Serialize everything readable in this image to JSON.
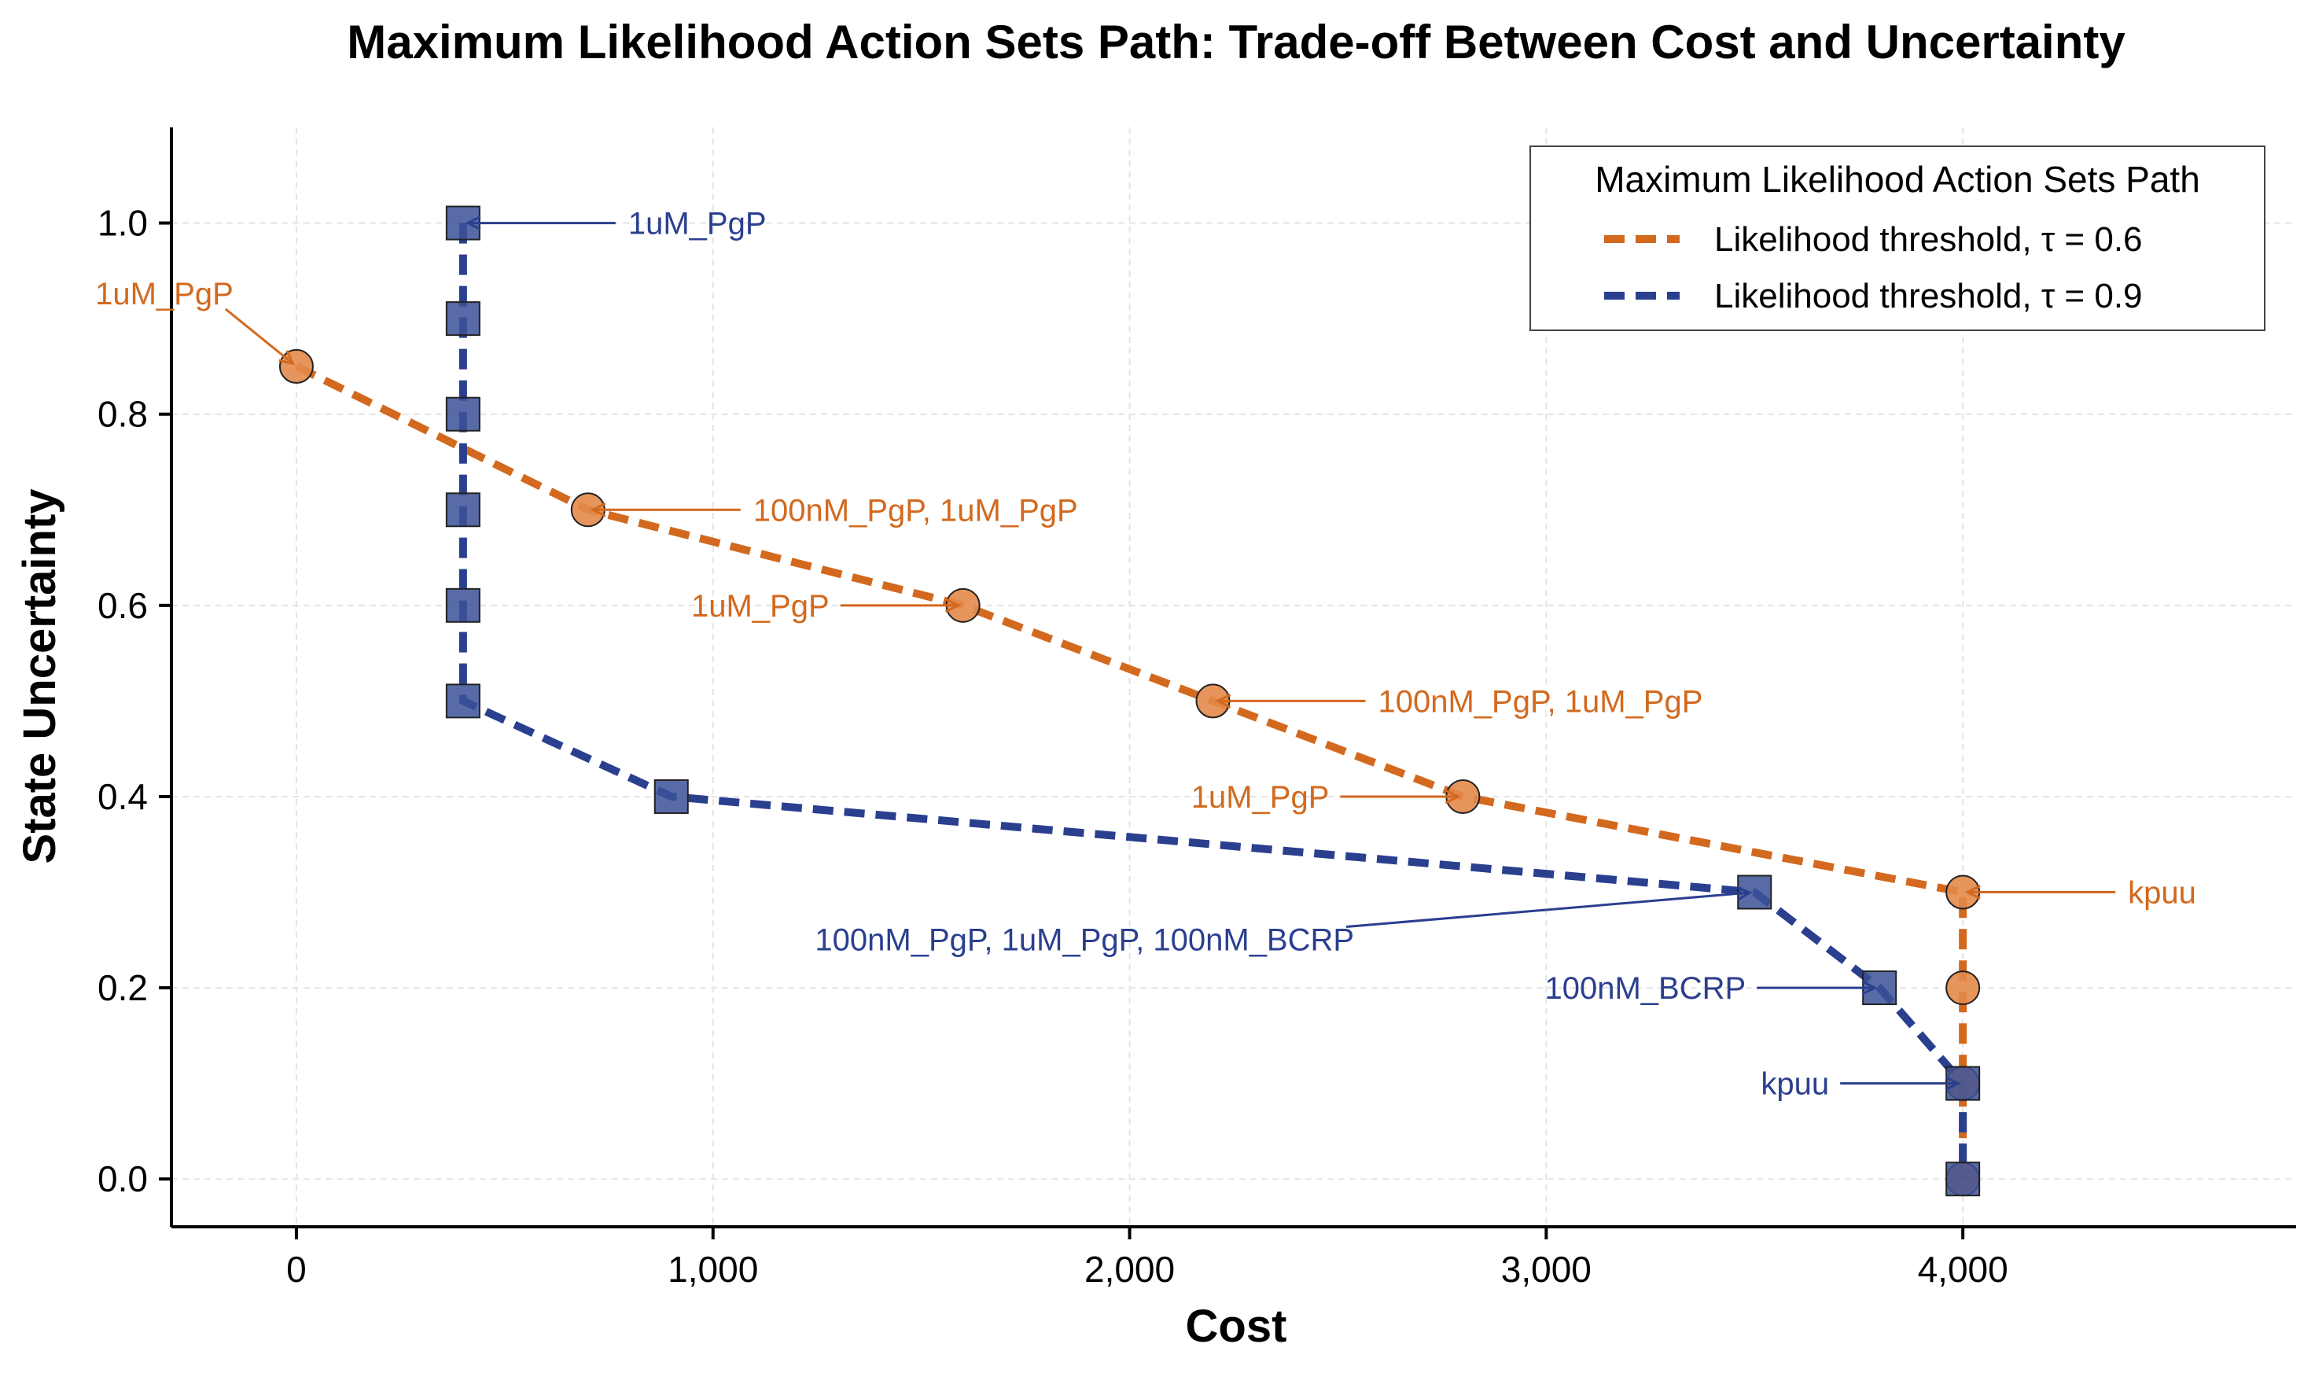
{
  "chart_data": {
    "type": "line",
    "title": "Maximum Likelihood Action Sets Path: Trade-off Between Cost and Uncertainty",
    "xlabel": "Cost",
    "ylabel": "State Uncertainty",
    "xlim": [
      -300,
      4800
    ],
    "ylim": [
      -0.05,
      1.1
    ],
    "xticks": [
      0,
      1000,
      2000,
      3000,
      4000
    ],
    "xtick_labels": [
      "0",
      "1,000",
      "2,000",
      "3,000",
      "4,000"
    ],
    "yticks": [
      0.0,
      0.2,
      0.4,
      0.6,
      0.8,
      1.0
    ],
    "ytick_labels": [
      "0.0",
      "0.2",
      "0.4",
      "0.6",
      "0.8",
      "1.0"
    ],
    "grid": true,
    "legend": {
      "title": "Maximum Likelihood Action Sets Path",
      "placement": "top-right"
    },
    "series": [
      {
        "name": "Likelihood threshold, τ = 0.6",
        "color": "#d2691e",
        "marker": "circle",
        "line_style": "dashed",
        "x": [
          0,
          700,
          1600,
          2200,
          2800,
          4000,
          4000,
          4000,
          4000
        ],
        "y": [
          0.85,
          0.7,
          0.6,
          0.5,
          0.4,
          0.3,
          0.2,
          0.1,
          0.0
        ],
        "annotations": [
          {
            "x": 0,
            "y": 0.85,
            "label": "1uM_PgP",
            "side": "above-left"
          },
          {
            "x": 700,
            "y": 0.7,
            "label": "100nM_PgP, 1uM_PgP",
            "side": "right"
          },
          {
            "x": 1600,
            "y": 0.6,
            "label": "1uM_PgP",
            "side": "left"
          },
          {
            "x": 2200,
            "y": 0.5,
            "label": "100nM_PgP, 1uM_PgP",
            "side": "right"
          },
          {
            "x": 2800,
            "y": 0.4,
            "label": "1uM_PgP",
            "side": "left"
          },
          {
            "x": 4000,
            "y": 0.3,
            "label": "kpuu",
            "side": "right"
          }
        ]
      },
      {
        "name": "Likelihood threshold, τ = 0.9",
        "color": "#2b3f8f",
        "marker": "square",
        "line_style": "dashed",
        "x": [
          400,
          400,
          400,
          400,
          400,
          400,
          900,
          3500,
          3800,
          4000,
          4000
        ],
        "y": [
          1.0,
          0.9,
          0.8,
          0.7,
          0.6,
          0.5,
          0.4,
          0.3,
          0.2,
          0.1,
          0.0
        ],
        "annotations": [
          {
            "x": 400,
            "y": 1.0,
            "label": "1uM_PgP",
            "side": "right"
          },
          {
            "x": 3500,
            "y": 0.3,
            "label": "100nM_PgP, 1uM_PgP, 100nM_BCRP",
            "side": "below-left"
          },
          {
            "x": 3800,
            "y": 0.2,
            "label": "100nM_BCRP",
            "side": "left"
          },
          {
            "x": 4000,
            "y": 0.1,
            "label": "kpuu",
            "side": "left"
          }
        ]
      }
    ]
  }
}
